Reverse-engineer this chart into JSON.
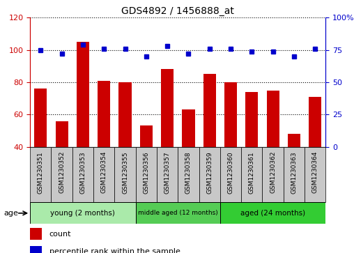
{
  "title": "GDS4892 / 1456888_at",
  "samples": [
    "GSM1230351",
    "GSM1230352",
    "GSM1230353",
    "GSM1230354",
    "GSM1230355",
    "GSM1230356",
    "GSM1230357",
    "GSM1230358",
    "GSM1230359",
    "GSM1230360",
    "GSM1230361",
    "GSM1230362",
    "GSM1230363",
    "GSM1230364"
  ],
  "counts": [
    76,
    56,
    105,
    81,
    80,
    53,
    88,
    63,
    85,
    80,
    74,
    75,
    48,
    71
  ],
  "percentiles": [
    75,
    72,
    79,
    76,
    76,
    70,
    78,
    72,
    76,
    76,
    74,
    74,
    70,
    76
  ],
  "bar_color": "#CC0000",
  "dot_color": "#0000CC",
  "ylim_left": [
    40,
    120
  ],
  "ylim_right": [
    0,
    100
  ],
  "yticks_left": [
    40,
    60,
    80,
    100,
    120
  ],
  "yticks_right": [
    0,
    25,
    50,
    75,
    100
  ],
  "groups": [
    {
      "label": "young (2 months)",
      "start": 0,
      "end": 5,
      "color": "#AAEAAA"
    },
    {
      "label": "middle aged (12 months)",
      "start": 5,
      "end": 9,
      "color": "#55CC55"
    },
    {
      "label": "aged (24 months)",
      "start": 9,
      "end": 14,
      "color": "#33CC33"
    }
  ],
  "age_label": "age",
  "legend_count": "count",
  "legend_pct": "percentile rank within the sample",
  "tick_area_color": "#C8C8C8",
  "group_colors": [
    "#AAEAAA",
    "#55CC55",
    "#33CC33"
  ]
}
